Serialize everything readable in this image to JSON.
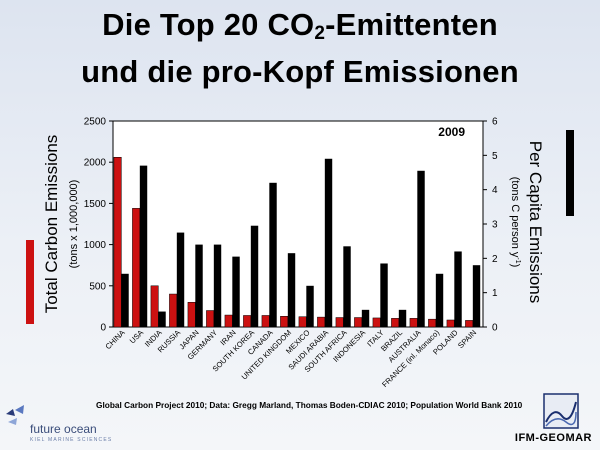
{
  "slide": {
    "title_main": "Die Top 20 CO",
    "title_sub": "2",
    "title_rest": "-Emittenten",
    "title_line2": "und die pro-Kopf Emissionen",
    "source_note": "Global Carbon Project 2010; Data: Gregg Marland, Thomas Boden-CDIAC 2010; Population World Bank 2010",
    "logo_left_text": "future ocean",
    "logo_left_sub": "KIEL MARINE SCIENCES",
    "logo_right_text": "IFM-GEOMAR"
  },
  "chart_data": {
    "type": "bar",
    "annotation": "2009",
    "categories": [
      "CHINA",
      "USA",
      "INDIA",
      "RUSSIA",
      "JAPAN",
      "GERMANY",
      "IRAN",
      "SOUTH KOREA",
      "CANADA",
      "UNITED KINGDOM",
      "MEXICO",
      "SAUDI ARABIA",
      "SOUTH AFRICA",
      "INDONESIA",
      "ITALY",
      "BRAZIL",
      "AUSTRALIA",
      "FRANCE (inl. Monaco)",
      "POLAND",
      "SPAIN"
    ],
    "series": [
      {
        "name": "Total Carbon Emissions",
        "axis": "left",
        "color": "#cc1111",
        "values": [
          2060,
          1440,
          500,
          400,
          300,
          200,
          145,
          140,
          140,
          130,
          125,
          120,
          115,
          115,
          110,
          105,
          105,
          95,
          85,
          80
        ]
      },
      {
        "name": "Per Capita Emissions",
        "axis": "right",
        "color": "#000000",
        "values": [
          1.55,
          4.7,
          0.45,
          2.75,
          2.4,
          2.4,
          2.05,
          2.95,
          4.2,
          2.15,
          1.2,
          4.9,
          2.35,
          0.5,
          1.85,
          0.5,
          4.55,
          1.55,
          2.2,
          1.8
        ]
      }
    ],
    "ylabel": "Total Carbon Emissions",
    "ylabel_sub": "(tons x 1,000,000)",
    "y2label": "Per Capita Emissions",
    "y2label_sub_main": "(tons C person y",
    "y2label_sub_sup": "-1",
    "y2label_sub_end": ")",
    "ylim": [
      0,
      2500
    ],
    "y2lim": [
      0,
      6
    ],
    "yticks": [
      0,
      500,
      1000,
      1500,
      2000,
      2500
    ],
    "y2ticks": [
      0,
      1,
      2,
      3,
      4,
      5,
      6
    ],
    "grid": false
  }
}
